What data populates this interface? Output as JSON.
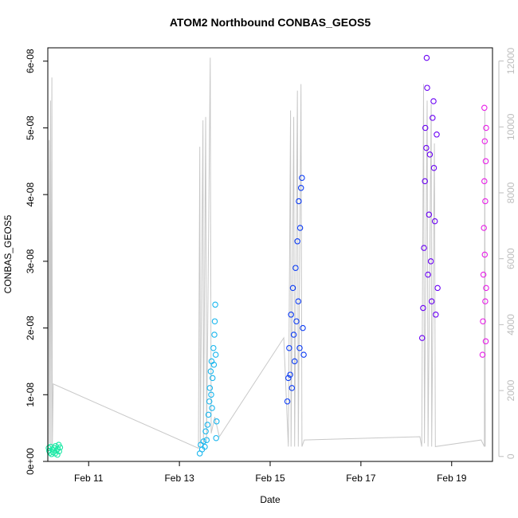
{
  "chart_data": {
    "type": "scatter",
    "title": "ATOM2 Northbound CONBAS_GEOS5",
    "xlabel": "Date",
    "ylabel": "CONBAS_GEOS5",
    "x_axis": {
      "unit": "days (Feb, day of month)",
      "range": [
        10.1,
        19.9
      ],
      "ticks": [
        {
          "value": 11,
          "label": "Feb 11"
        },
        {
          "value": 13,
          "label": "Feb 13"
        },
        {
          "value": 15,
          "label": "Feb 15"
        },
        {
          "value": 17,
          "label": "Feb 17"
        },
        {
          "value": 19,
          "label": "Feb 19"
        }
      ]
    },
    "y_axis_left": {
      "range": [
        0,
        6.2e-08
      ],
      "ticks": [
        {
          "value": 0,
          "label": "0e+00"
        },
        {
          "value": 1e-08,
          "label": "1e-08"
        },
        {
          "value": 2e-08,
          "label": "2e-08"
        },
        {
          "value": 3e-08,
          "label": "3e-08"
        },
        {
          "value": 4e-08,
          "label": "4e-08"
        },
        {
          "value": 5e-08,
          "label": "5e-08"
        },
        {
          "value": 6e-08,
          "label": "6e-08"
        }
      ]
    },
    "y_axis_right": {
      "range": [
        -150,
        12400
      ],
      "color": "#bdbdbd",
      "ticks": [
        {
          "value": 0,
          "label": "0"
        },
        {
          "value": 2000,
          "label": "2000"
        },
        {
          "value": 4000,
          "label": "4000"
        },
        {
          "value": 6000,
          "label": "6000"
        },
        {
          "value": 8000,
          "label": "8000"
        },
        {
          "value": 10000,
          "label": "10000"
        },
        {
          "value": 12000,
          "label": "12000"
        }
      ]
    },
    "grid": false,
    "series": [
      {
        "color": "#1de9a6",
        "points": [
          [
            10.12,
            2e-09
          ],
          [
            10.13,
            1.6e-09
          ],
          [
            10.15,
            1.3e-09
          ],
          [
            10.16,
            2.2e-09
          ],
          [
            10.18,
            1.1e-09
          ],
          [
            10.2,
            1.8e-09
          ],
          [
            10.22,
            1.4e-09
          ],
          [
            10.24,
            2e-09
          ],
          [
            10.26,
            1.2e-09
          ],
          [
            10.27,
            2.3e-09
          ],
          [
            10.29,
            1.6e-09
          ],
          [
            10.31,
            1e-09
          ],
          [
            10.32,
            1.9e-09
          ],
          [
            10.34,
            2.5e-09
          ],
          [
            10.35,
            1.5e-09
          ],
          [
            10.37,
            2.1e-09
          ]
        ]
      },
      {
        "color": "#18b6ee",
        "points": [
          [
            13.45,
            1.2e-09
          ],
          [
            13.47,
            2.5e-09
          ],
          [
            13.5,
            1.8e-09
          ],
          [
            13.53,
            3e-09
          ],
          [
            13.56,
            2.2e-09
          ],
          [
            13.58,
            4.5e-09
          ],
          [
            13.6,
            3.2e-09
          ],
          [
            13.62,
            5.5e-09
          ],
          [
            13.64,
            7e-09
          ],
          [
            13.66,
            9e-09
          ],
          [
            13.67,
            1.1e-08
          ],
          [
            13.69,
            1.35e-08
          ],
          [
            13.7,
            1e-08
          ],
          [
            13.71,
            1.5e-08
          ],
          [
            13.72,
            8e-09
          ],
          [
            13.73,
            1.25e-08
          ],
          [
            13.75,
            1.7e-08
          ],
          [
            13.76,
            1.45e-08
          ],
          [
            13.77,
            1.9e-08
          ],
          [
            13.78,
            2.1e-08
          ],
          [
            13.79,
            2.35e-08
          ],
          [
            13.8,
            1.6e-08
          ],
          [
            13.81,
            3.5e-09
          ],
          [
            13.82,
            6e-09
          ]
        ]
      },
      {
        "color": "#0c3cf5",
        "points": [
          [
            15.38,
            9e-09
          ],
          [
            15.4,
            1.25e-08
          ],
          [
            15.42,
            1.7e-08
          ],
          [
            15.44,
            1.3e-08
          ],
          [
            15.46,
            2.2e-08
          ],
          [
            15.48,
            1.1e-08
          ],
          [
            15.5,
            2.6e-08
          ],
          [
            15.52,
            1.9e-08
          ],
          [
            15.54,
            1.5e-08
          ],
          [
            15.56,
            2.9e-08
          ],
          [
            15.58,
            2.1e-08
          ],
          [
            15.6,
            3.3e-08
          ],
          [
            15.62,
            2.4e-08
          ],
          [
            15.63,
            3.9e-08
          ],
          [
            15.65,
            1.7e-08
          ],
          [
            15.66,
            3.5e-08
          ],
          [
            15.68,
            4.1e-08
          ],
          [
            15.7,
            4.25e-08
          ],
          [
            15.72,
            2e-08
          ],
          [
            15.74,
            1.6e-08
          ]
        ]
      },
      {
        "color": "#6a00f4",
        "points": [
          [
            18.35,
            1.85e-08
          ],
          [
            18.37,
            2.3e-08
          ],
          [
            18.39,
            3.2e-08
          ],
          [
            18.41,
            4.2e-08
          ],
          [
            18.42,
            5e-08
          ],
          [
            18.44,
            4.7e-08
          ],
          [
            18.45,
            6.05e-08
          ],
          [
            18.46,
            5.6e-08
          ],
          [
            18.48,
            2.8e-08
          ],
          [
            18.5,
            3.7e-08
          ],
          [
            18.52,
            4.6e-08
          ],
          [
            18.54,
            3e-08
          ],
          [
            18.56,
            2.4e-08
          ],
          [
            18.58,
            5.15e-08
          ],
          [
            18.6,
            5.4e-08
          ],
          [
            18.61,
            4.4e-08
          ],
          [
            18.63,
            3.6e-08
          ],
          [
            18.65,
            2.2e-08
          ],
          [
            18.67,
            4.9e-08
          ],
          [
            18.69,
            2.6e-08
          ]
        ]
      },
      {
        "color": "#e81ee8",
        "points": [
          [
            19.68,
            1.6e-08
          ],
          [
            19.69,
            2.1e-08
          ],
          [
            19.7,
            2.8e-08
          ],
          [
            19.71,
            3.5e-08
          ],
          [
            19.72,
            4.2e-08
          ],
          [
            19.72,
            5.3e-08
          ],
          [
            19.73,
            4.8e-08
          ],
          [
            19.73,
            3.1e-08
          ],
          [
            19.74,
            2.4e-08
          ],
          [
            19.74,
            3.9e-08
          ],
          [
            19.75,
            4.5e-08
          ],
          [
            19.75,
            1.8e-08
          ],
          [
            19.76,
            2.6e-08
          ],
          [
            19.76,
            5e-08
          ]
        ]
      }
    ],
    "altitude_trace": {
      "color": "#c8c8c8",
      "axis": "right",
      "points": [
        [
          10.1,
          250
        ],
        [
          10.1,
          9700
        ],
        [
          10.11,
          300
        ],
        [
          10.13,
          9600
        ],
        [
          10.14,
          400
        ],
        [
          10.16,
          10800
        ],
        [
          10.17,
          300
        ],
        [
          10.19,
          11500
        ],
        [
          10.2,
          300
        ],
        [
          10.22,
          2200
        ],
        [
          13.42,
          250
        ],
        [
          13.45,
          9400
        ],
        [
          13.46,
          300
        ],
        [
          13.52,
          10200
        ],
        [
          13.53,
          300
        ],
        [
          13.58,
          10300
        ],
        [
          13.6,
          500
        ],
        [
          13.68,
          12100
        ],
        [
          13.7,
          700
        ],
        [
          13.78,
          1200
        ],
        [
          13.88,
          600
        ],
        [
          15.3,
          3600
        ],
        [
          15.4,
          300
        ],
        [
          15.45,
          10500
        ],
        [
          15.46,
          300
        ],
        [
          15.52,
          10300
        ],
        [
          15.54,
          300
        ],
        [
          15.6,
          11100
        ],
        [
          15.62,
          300
        ],
        [
          15.68,
          11300
        ],
        [
          15.7,
          300
        ],
        [
          15.75,
          500
        ],
        [
          18.3,
          600
        ],
        [
          18.34,
          300
        ],
        [
          18.38,
          11300
        ],
        [
          18.4,
          400
        ],
        [
          18.46,
          10800
        ],
        [
          18.48,
          300
        ],
        [
          18.55,
          10700
        ],
        [
          18.56,
          300
        ],
        [
          18.62,
          9500
        ],
        [
          18.64,
          300
        ],
        [
          19.65,
          500
        ],
        [
          19.72,
          300
        ],
        [
          19.73,
          10500
        ],
        [
          19.74,
          300
        ]
      ]
    }
  }
}
